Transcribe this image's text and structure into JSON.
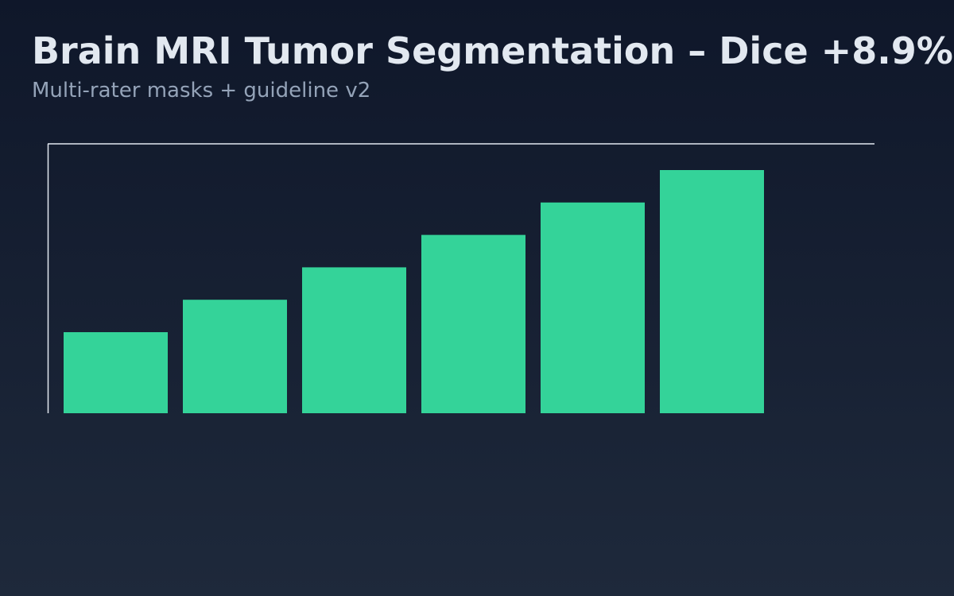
{
  "chart_data": {
    "type": "bar",
    "title": "Brain MRI Tumor Segmentation – Dice +8.9%",
    "subtitle": "Multi-rater masks + guideline v2",
    "categories": [
      null,
      null,
      null,
      null,
      null,
      null
    ],
    "values": [
      30,
      42,
      54,
      66,
      78,
      90
    ],
    "color": "#34d399",
    "ylim": [
      0,
      100
    ]
  }
}
